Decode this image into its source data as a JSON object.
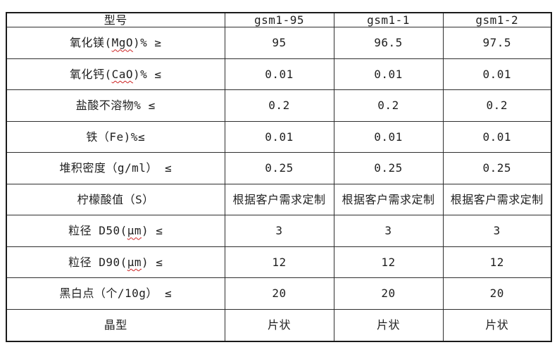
{
  "table": {
    "header": {
      "label": "型号",
      "models": [
        "gsm1-95",
        "gsm1-1",
        "gsm1-2"
      ]
    },
    "rows": [
      {
        "label_pre": "氧化镁(",
        "label_mark": "MgO",
        "label_post": ")% ≥",
        "values": [
          "95",
          "96.5",
          "97.5"
        ]
      },
      {
        "label_pre": "氧化钙(",
        "label_mark": "CaO",
        "label_post": ")% ≤",
        "values": [
          "0.01",
          "0.01",
          "0.01"
        ]
      },
      {
        "label_pre": "盐酸不溶物% ≤",
        "label_mark": "",
        "label_post": "",
        "values": [
          "0.2",
          "0.2",
          "0.2"
        ]
      },
      {
        "label_pre": "铁（Fe)%≤",
        "label_mark": "",
        "label_post": "",
        "values": [
          "0.01",
          "0.01",
          "0.01"
        ]
      },
      {
        "label_pre": "堆积密度（g/ml） ≤",
        "label_mark": "",
        "label_post": "",
        "values": [
          "0.25",
          "0.25",
          "0.25"
        ]
      },
      {
        "label_pre": "柠檬酸值（S）",
        "label_mark": "",
        "label_post": "",
        "values": [
          "根据客户需求定制",
          "根据客户需求定制",
          "根据客户需求定制"
        ]
      },
      {
        "label_pre": "粒径 D50(",
        "label_mark": "μm",
        "label_post": ") ≤",
        "values": [
          "3",
          "3",
          "3"
        ]
      },
      {
        "label_pre": "粒径 D90(",
        "label_mark": "μm",
        "label_post": ") ≤",
        "values": [
          "12",
          "12",
          "12"
        ]
      },
      {
        "label_pre": "黑白点（个/10g） ≤",
        "label_mark": "",
        "label_post": "",
        "values": [
          "20",
          "20",
          "20"
        ]
      },
      {
        "label_pre": "晶型",
        "label_mark": "",
        "label_post": "",
        "values": [
          "片状",
          "片状",
          "片状"
        ]
      }
    ]
  },
  "colors": {
    "outer_border": "#1a1a1a",
    "inner_border": "#2e2e2e",
    "text": "#1f1f1f",
    "squiggle": "#cc2222",
    "background": "#ffffff"
  }
}
